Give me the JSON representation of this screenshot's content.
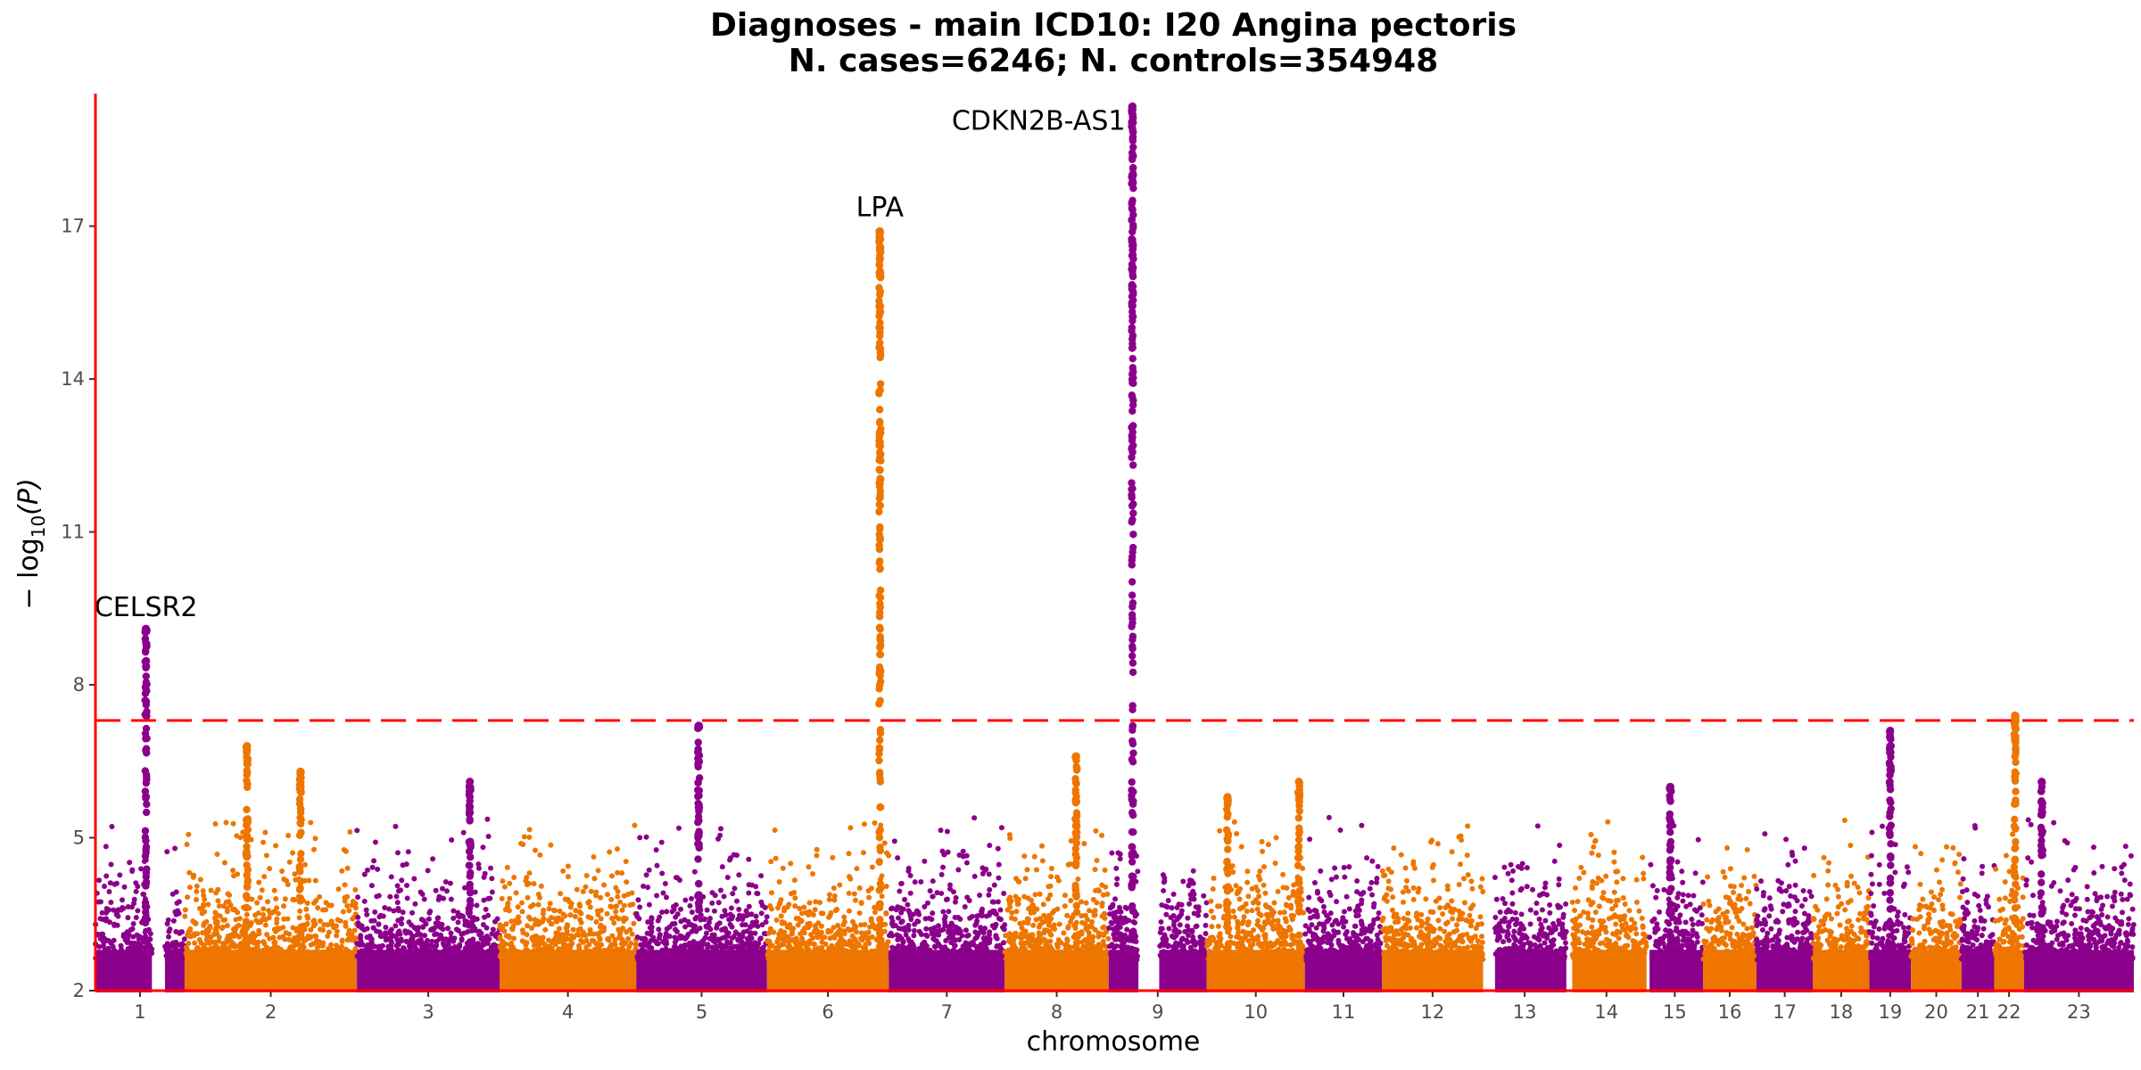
{
  "chart_data": {
    "type": "scatter",
    "title_line1": "Diagnoses - main ICD10: I20 Angina pectoris",
    "title_line2": "N. cases=6246; N. controls=354948",
    "xlabel": "chromosome",
    "ylabel_prefix": "− log",
    "ylabel_sub": "10",
    "ylabel_suffix": "(P)",
    "ylim": [
      2,
      19.6
    ],
    "yticks": [
      2,
      5,
      8,
      11,
      14,
      17
    ],
    "significance_threshold": 7.3,
    "colors": {
      "odd": "#8B008B",
      "even": "#EE7600",
      "threshold": "#FF0000",
      "axis": "#FF0000"
    },
    "chromosomes": [
      {
        "label": "1",
        "start": 0.0,
        "end": 1.5,
        "gap": [
          0.95,
          1.17
        ]
      },
      {
        "label": "2",
        "start": 1.5,
        "end": 4.4
      },
      {
        "label": "3",
        "start": 4.4,
        "end": 6.8
      },
      {
        "label": "4",
        "start": 6.8,
        "end": 9.1
      },
      {
        "label": "5",
        "start": 9.1,
        "end": 11.3
      },
      {
        "label": "6",
        "start": 11.3,
        "end": 13.35
      },
      {
        "label": "7",
        "start": 13.35,
        "end": 15.3
      },
      {
        "label": "8",
        "start": 15.3,
        "end": 17.05
      },
      {
        "label": "9",
        "start": 17.05,
        "end": 18.7,
        "gap": [
          17.55,
          17.9
        ]
      },
      {
        "label": "10",
        "start": 18.7,
        "end": 20.35
      },
      {
        "label": "11",
        "start": 20.35,
        "end": 21.65
      },
      {
        "label": "12",
        "start": 21.65,
        "end": 23.35
      },
      {
        "label": "13",
        "start": 23.35,
        "end": 24.75,
        "gap": [
          23.35,
          23.55
        ]
      },
      {
        "label": "14",
        "start": 24.75,
        "end": 26.1,
        "gap": [
          24.75,
          24.85
        ]
      },
      {
        "label": "15",
        "start": 26.1,
        "end": 27.05,
        "gap": [
          26.1,
          26.15
        ]
      },
      {
        "label": "16",
        "start": 27.05,
        "end": 27.95
      },
      {
        "label": "17",
        "start": 27.95,
        "end": 28.9
      },
      {
        "label": "18",
        "start": 28.9,
        "end": 29.85
      },
      {
        "label": "19",
        "start": 29.85,
        "end": 30.55
      },
      {
        "label": "20",
        "start": 30.55,
        "end": 31.4
      },
      {
        "label": "21",
        "start": 31.4,
        "end": 31.95
      },
      {
        "label": "22",
        "start": 31.95,
        "end": 32.45
      },
      {
        "label": "23",
        "start": 32.45,
        "end": 34.3
      }
    ],
    "peaks": [
      {
        "chr": "1",
        "x": 0.85,
        "max": 9.1,
        "min": 7.0
      },
      {
        "chr": "2",
        "x": 2.55,
        "max": 6.8,
        "min": 5.0
      },
      {
        "chr": "2",
        "x": 3.45,
        "max": 6.3,
        "min": 5.0
      },
      {
        "chr": "3",
        "x": 6.3,
        "max": 6.1,
        "min": 5.0
      },
      {
        "chr": "5",
        "x": 10.15,
        "max": 7.2,
        "min": 6.8
      },
      {
        "chr": "6",
        "x": 13.2,
        "max": 16.9,
        "min": 7.0
      },
      {
        "chr": "8",
        "x": 16.5,
        "max": 6.6,
        "min": 5.0
      },
      {
        "chr": "9",
        "x": 17.45,
        "max": 19.35,
        "min": 5.0
      },
      {
        "chr": "10",
        "x": 19.05,
        "max": 5.8,
        "min": 4.5
      },
      {
        "chr": "10",
        "x": 20.25,
        "max": 6.1,
        "min": 4.5
      },
      {
        "chr": "15",
        "x": 26.5,
        "max": 6.0,
        "min": 4.5
      },
      {
        "chr": "19",
        "x": 30.2,
        "max": 7.1,
        "min": 5.0
      },
      {
        "chr": "22",
        "x": 32.3,
        "max": 7.4,
        "min": 6.0
      },
      {
        "chr": "23",
        "x": 32.75,
        "max": 6.1,
        "min": 5.0
      }
    ],
    "annotations": [
      {
        "gene": "CELSR2",
        "x": 0.85,
        "y": 9.1
      },
      {
        "gene": "LPA",
        "x": 13.2,
        "y": 16.95
      },
      {
        "gene": "CDKN2B-AS1",
        "x": 17.45,
        "y": 19.35
      }
    ]
  }
}
